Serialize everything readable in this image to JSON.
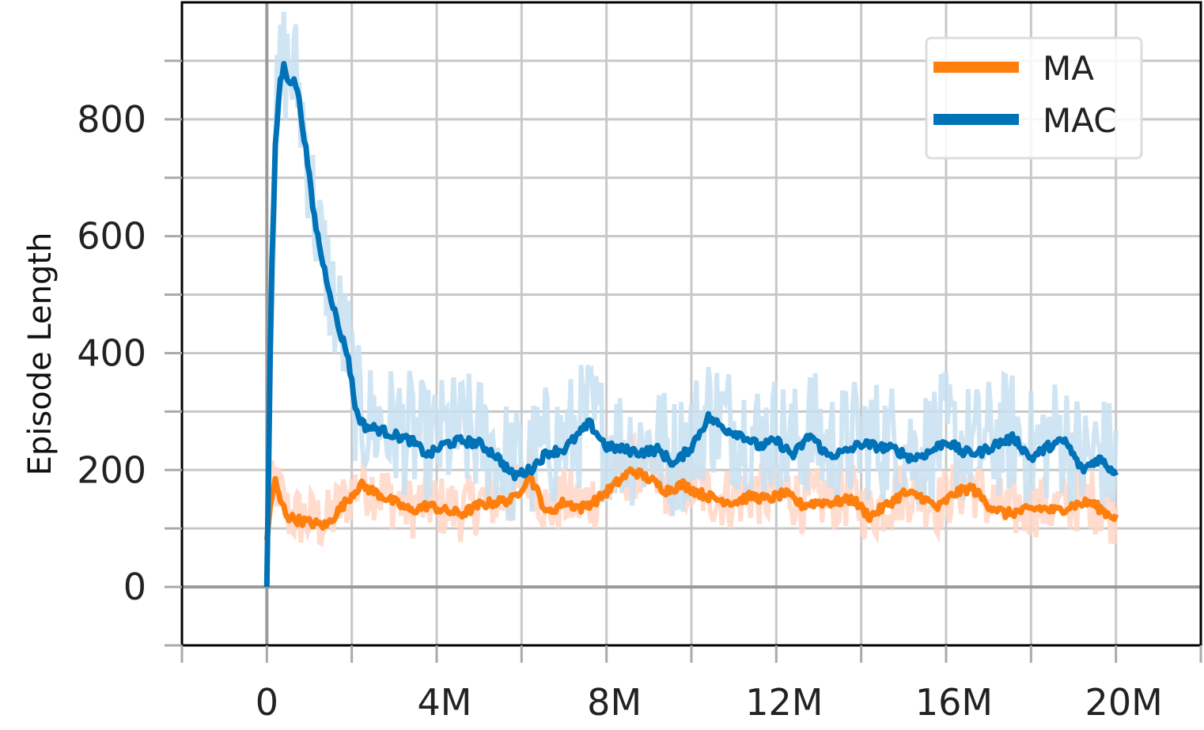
{
  "chart_data": {
    "type": "line",
    "title": "",
    "xlabel": "",
    "ylabel": "Episode Length",
    "xlim": [
      -2000000,
      22000000
    ],
    "ylim": [
      -100,
      1000
    ],
    "x_ticks": [
      0,
      4000000,
      8000000,
      12000000,
      16000000,
      20000000
    ],
    "x_tick_labels": [
      "0",
      "4M",
      "8M",
      "12M",
      "16M",
      "20M"
    ],
    "x_minor_ticks": [
      -2000000,
      2000000,
      6000000,
      10000000,
      14000000,
      18000000,
      22000000
    ],
    "y_ticks": [
      0,
      200,
      400,
      600,
      800
    ],
    "y_tick_labels": [
      "0",
      "200",
      "400",
      "600",
      "800"
    ],
    "y_minor_ticks": [
      -100,
      100,
      300,
      500,
      700,
      900
    ],
    "grid": true,
    "legend": {
      "position": "top-right",
      "entries": [
        "MA",
        "MAC"
      ]
    },
    "series": [
      {
        "name": "MA",
        "color": "#ff7f0e",
        "raw_color": "#ffd6c6",
        "x": [
          0,
          100000,
          200000,
          300000,
          500000,
          700000,
          1000000,
          1400000,
          1800000,
          2200000,
          2600000,
          3000000,
          3400000,
          3800000,
          4200000,
          4600000,
          5000000,
          5400000,
          5800000,
          6200000,
          6600000,
          7000000,
          7400000,
          7800000,
          8200000,
          8600000,
          9000000,
          9400000,
          9800000,
          10200000,
          10600000,
          11000000,
          11400000,
          11800000,
          12200000,
          12600000,
          13000000,
          13400000,
          13800000,
          14200000,
          14600000,
          15000000,
          15400000,
          15800000,
          16200000,
          16600000,
          17000000,
          17400000,
          17800000,
          18200000,
          18600000,
          19000000,
          19400000,
          19800000,
          20000000
        ],
        "values": [
          80,
          150,
          180,
          150,
          120,
          115,
          110,
          105,
          140,
          175,
          160,
          145,
          130,
          140,
          130,
          125,
          140,
          145,
          150,
          190,
          125,
          145,
          135,
          150,
          175,
          200,
          185,
          165,
          175,
          160,
          150,
          145,
          155,
          150,
          160,
          140,
          145,
          145,
          150,
          120,
          140,
          160,
          155,
          135,
          160,
          170,
          140,
          125,
          130,
          135,
          130,
          140,
          145,
          125,
          120
        ]
      },
      {
        "name": "MAC",
        "color": "#0072b8",
        "raw_color": "#c8e1f1",
        "x": [
          0,
          100000,
          200000,
          300000,
          400000,
          500000,
          700000,
          900000,
          1100000,
          1300000,
          1500000,
          1700000,
          1900000,
          2100000,
          2300000,
          2600000,
          3000000,
          3400000,
          3800000,
          4200000,
          4600000,
          5000000,
          5400000,
          5800000,
          6200000,
          6600000,
          7000000,
          7400000,
          7600000,
          8000000,
          8400000,
          8800000,
          9200000,
          9600000,
          10000000,
          10400000,
          10800000,
          11200000,
          11600000,
          12000000,
          12400000,
          12800000,
          13200000,
          13600000,
          14000000,
          14400000,
          14800000,
          15200000,
          15600000,
          16000000,
          16400000,
          16800000,
          17200000,
          17600000,
          18000000,
          18400000,
          18800000,
          19200000,
          19600000,
          20000000
        ],
        "values": [
          0,
          500,
          750,
          860,
          890,
          870,
          860,
          760,
          640,
          560,
          500,
          440,
          400,
          300,
          275,
          270,
          260,
          250,
          225,
          245,
          250,
          245,
          225,
          190,
          200,
          230,
          235,
          265,
          280,
          240,
          235,
          230,
          235,
          210,
          240,
          290,
          270,
          260,
          240,
          250,
          225,
          260,
          225,
          230,
          245,
          240,
          235,
          220,
          230,
          250,
          230,
          230,
          245,
          255,
          220,
          240,
          250,
          200,
          220,
          195
        ]
      }
    ]
  }
}
